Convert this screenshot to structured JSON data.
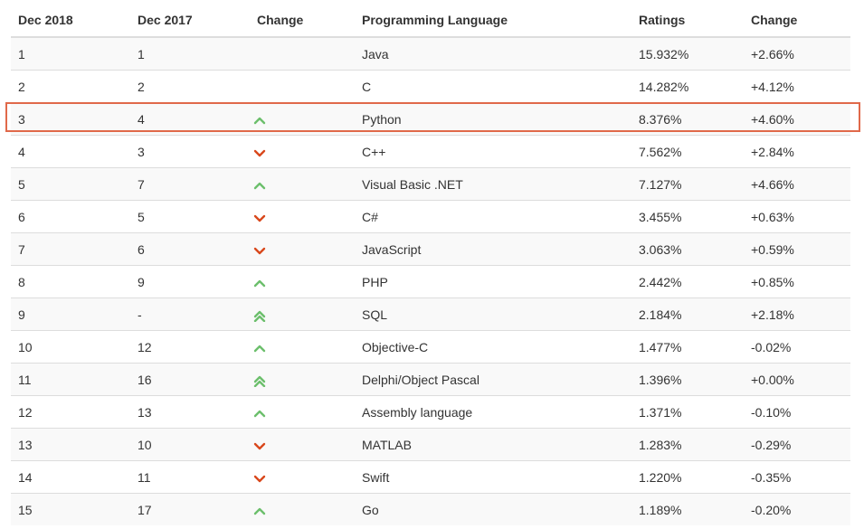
{
  "table": {
    "headers": [
      "Dec 2018",
      "Dec 2017",
      "Change",
      "Programming Language",
      "Ratings",
      "Change"
    ],
    "rows": [
      {
        "rank_2018": "1",
        "rank_2017": "1",
        "trend": "none",
        "language": "Java",
        "rating": "15.932%",
        "change": "+2.66%"
      },
      {
        "rank_2018": "2",
        "rank_2017": "2",
        "trend": "none",
        "language": "C",
        "rating": "14.282%",
        "change": "+4.12%"
      },
      {
        "rank_2018": "3",
        "rank_2017": "4",
        "trend": "up",
        "language": "Python",
        "rating": "8.376%",
        "change": "+4.60%"
      },
      {
        "rank_2018": "4",
        "rank_2017": "3",
        "trend": "down",
        "language": "C++",
        "rating": "7.562%",
        "change": "+2.84%"
      },
      {
        "rank_2018": "5",
        "rank_2017": "7",
        "trend": "up",
        "language": "Visual Basic .NET",
        "rating": "7.127%",
        "change": "+4.66%"
      },
      {
        "rank_2018": "6",
        "rank_2017": "5",
        "trend": "down",
        "language": "C#",
        "rating": "3.455%",
        "change": "+0.63%"
      },
      {
        "rank_2018": "7",
        "rank_2017": "6",
        "trend": "down",
        "language": "JavaScript",
        "rating": "3.063%",
        "change": "+0.59%"
      },
      {
        "rank_2018": "8",
        "rank_2017": "9",
        "trend": "up",
        "language": "PHP",
        "rating": "2.442%",
        "change": "+0.85%"
      },
      {
        "rank_2018": "9",
        "rank_2017": "-",
        "trend": "double-up",
        "language": "SQL",
        "rating": "2.184%",
        "change": "+2.18%"
      },
      {
        "rank_2018": "10",
        "rank_2017": "12",
        "trend": "up",
        "language": "Objective-C",
        "rating": "1.477%",
        "change": "-0.02%"
      },
      {
        "rank_2018": "11",
        "rank_2017": "16",
        "trend": "double-up",
        "language": "Delphi/Object Pascal",
        "rating": "1.396%",
        "change": "+0.00%"
      },
      {
        "rank_2018": "12",
        "rank_2017": "13",
        "trend": "up",
        "language": "Assembly language",
        "rating": "1.371%",
        "change": "-0.10%"
      },
      {
        "rank_2018": "13",
        "rank_2017": "10",
        "trend": "down",
        "language": "MATLAB",
        "rating": "1.283%",
        "change": "-0.29%"
      },
      {
        "rank_2018": "14",
        "rank_2017": "11",
        "trend": "down",
        "language": "Swift",
        "rating": "1.220%",
        "change": "-0.35%"
      },
      {
        "rank_2018": "15",
        "rank_2017": "17",
        "trend": "up",
        "language": "Go",
        "rating": "1.189%",
        "change": "-0.20%"
      }
    ],
    "highlighted_row_index": 2
  },
  "icons": {
    "up": "chevron-up-icon",
    "down": "chevron-down-icon",
    "double-up": "double-chevron-up-icon"
  },
  "colors": {
    "up": "#6cbf6c",
    "down": "#d9481c",
    "highlight_border": "#e0694a",
    "row_stripe": "#f9f9f9",
    "border": "#dddddd"
  }
}
